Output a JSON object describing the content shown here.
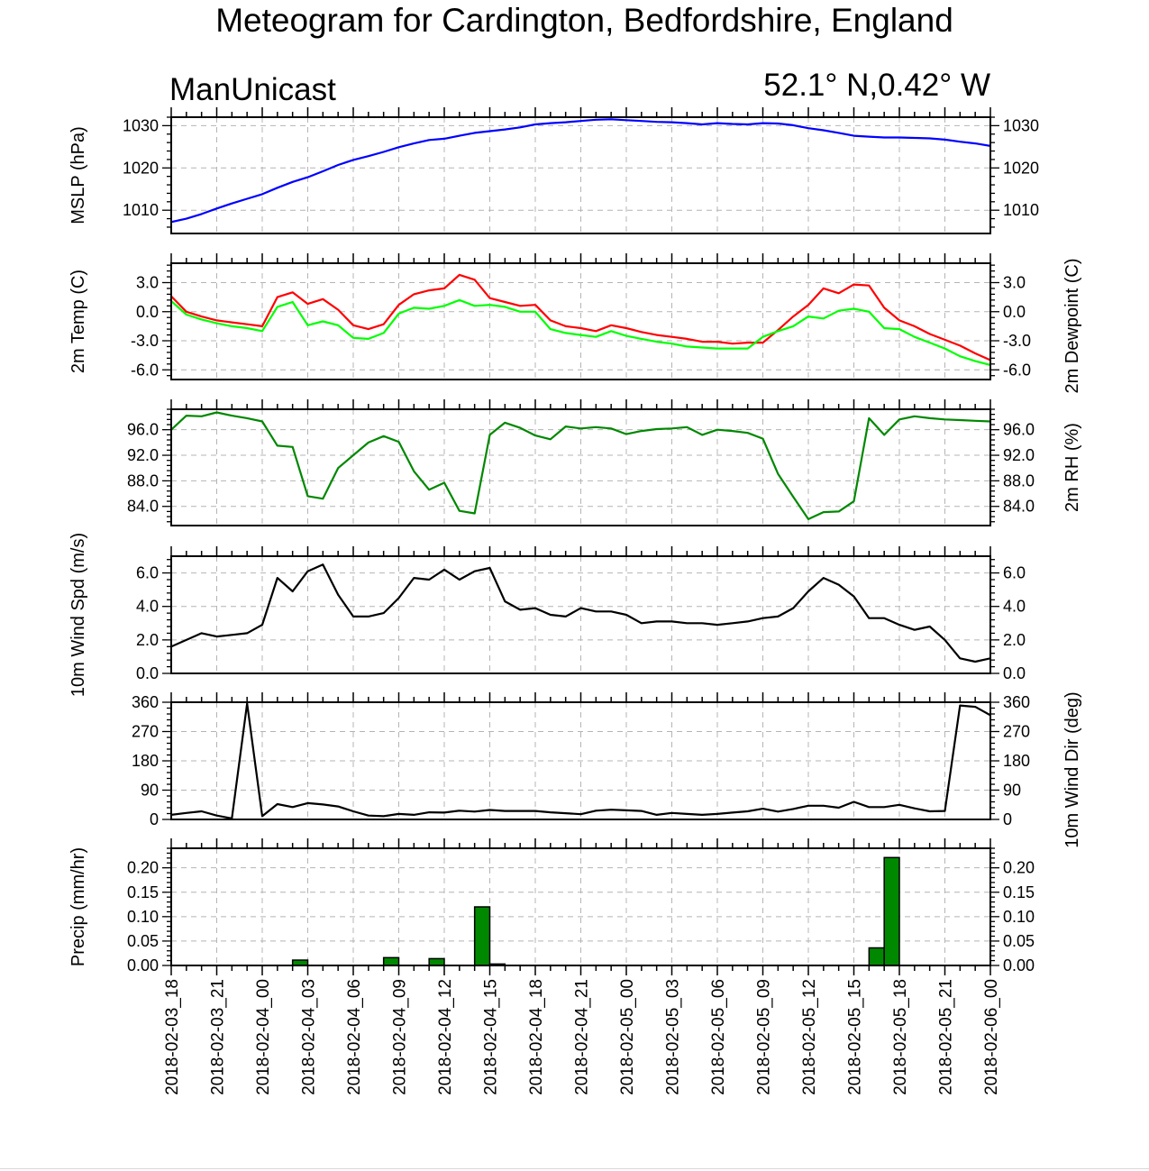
{
  "title": "Meteogram for Cardington, Bedfordshire, England",
  "left_string": "ManUnicast",
  "right_string": "52.1° N,0.42° W",
  "colors": {
    "mslp": "#0000ff",
    "temp": "#ff0000",
    "dewpoint": "#00ff00",
    "rh": "#008800",
    "wind": "#000000",
    "precip_fill": "#008800",
    "grid": "#b4b4b4"
  },
  "chart_data": {
    "type": "line",
    "x_time_labels": [
      "2018-02-03_18",
      "2018-02-03_21",
      "2018-02-04_00",
      "2018-02-04_03",
      "2018-02-04_06",
      "2018-02-04_09",
      "2018-02-04_12",
      "2018-02-04_15",
      "2018-02-04_18",
      "2018-02-04_21",
      "2018-02-05_00",
      "2018-02-05_03",
      "2018-02-05_06",
      "2018-02-05_09",
      "2018-02-05_12",
      "2018-02-05_15",
      "2018-02-05_18",
      "2018-02-05_21",
      "2018-02-06_00"
    ],
    "x_hours_range": [
      0,
      54
    ],
    "panels": [
      {
        "type": "line",
        "ylabel_left": "MSLP (hPa)",
        "ylabel_right": "",
        "ylim": [
          1004.5,
          1032
        ],
        "ticks": [
          1010,
          1020,
          1030
        ],
        "tick_labels": [
          "1010",
          "1020",
          "1030"
        ],
        "right_ticks": true,
        "series": [
          {
            "color_key": "mslp",
            "x": [
              0,
              1,
              2,
              3,
              4,
              5,
              6,
              7,
              8,
              9,
              10,
              11,
              12,
              13,
              14,
              15,
              16,
              17,
              18,
              19,
              20,
              21,
              22,
              23,
              24,
              25,
              26,
              27,
              28,
              29,
              30,
              31,
              32,
              33,
              34,
              35,
              36,
              37,
              38,
              39,
              40,
              41,
              42,
              43,
              44,
              45,
              46,
              47,
              48,
              49,
              50,
              51,
              52,
              53,
              54
            ],
            "y": [
              1007.2,
              1008.0,
              1009.1,
              1010.4,
              1011.6,
              1012.7,
              1013.8,
              1015.3,
              1016.7,
              1017.8,
              1019.2,
              1020.7,
              1021.9,
              1022.8,
              1023.8,
              1024.9,
              1025.8,
              1026.6,
              1026.9,
              1027.6,
              1028.3,
              1028.7,
              1029.1,
              1029.6,
              1030.3,
              1030.6,
              1030.8,
              1031.1,
              1031.4,
              1031.5,
              1031.3,
              1031.1,
              1030.9,
              1030.8,
              1030.6,
              1030.3,
              1030.6,
              1030.4,
              1030.3,
              1030.6,
              1030.5,
              1030.1,
              1029.4,
              1028.9,
              1028.3,
              1027.6,
              1027.4,
              1027.2,
              1027.2,
              1027.1,
              1027.0,
              1026.7,
              1026.2,
              1025.8,
              1025.2
            ]
          }
        ]
      },
      {
        "type": "line",
        "ylabel_left": "2m Temp (C)",
        "ylabel_right": "2m Dewpoint (C)",
        "ylim": [
          -7.0,
          5.0
        ],
        "ticks": [
          -6,
          -3,
          0,
          3
        ],
        "tick_labels": [
          "-6.0",
          "-3.0",
          "0.0",
          "3.0"
        ],
        "right_ticks": true,
        "series": [
          {
            "color_key": "temp",
            "x": [
              0,
              1,
              2,
              3,
              4,
              5,
              6,
              7,
              8,
              9,
              10,
              11,
              12,
              13,
              14,
              15,
              16,
              17,
              18,
              19,
              20,
              21,
              22,
              23,
              24,
              25,
              26,
              27,
              28,
              29,
              30,
              31,
              32,
              33,
              34,
              35,
              36,
              37,
              38,
              39,
              40,
              41,
              42,
              43,
              44,
              45,
              46,
              47,
              48,
              49,
              50,
              51,
              52,
              53,
              54
            ],
            "y": [
              1.6,
              0.0,
              -0.5,
              -0.9,
              -1.1,
              -1.3,
              -1.5,
              1.5,
              2.0,
              0.8,
              1.3,
              0.2,
              -1.4,
              -1.8,
              -1.3,
              0.7,
              1.8,
              2.2,
              2.4,
              3.8,
              3.3,
              1.4,
              1.0,
              0.6,
              0.7,
              -0.9,
              -1.5,
              -1.7,
              -2.0,
              -1.4,
              -1.7,
              -2.1,
              -2.4,
              -2.6,
              -2.8,
              -3.1,
              -3.1,
              -3.3,
              -3.2,
              -3.2,
              -1.9,
              -0.5,
              0.7,
              2.4,
              1.9,
              2.8,
              2.7,
              0.4,
              -0.9,
              -1.5,
              -2.3,
              -2.9,
              -3.5,
              -4.3,
              -5.0
            ]
          },
          {
            "color_key": "dewpoint",
            "x": [
              0,
              1,
              2,
              3,
              4,
              5,
              6,
              7,
              8,
              9,
              10,
              11,
              12,
              13,
              14,
              15,
              16,
              17,
              18,
              19,
              20,
              21,
              22,
              23,
              24,
              25,
              26,
              27,
              28,
              29,
              30,
              31,
              32,
              33,
              34,
              35,
              36,
              37,
              38,
              39,
              40,
              41,
              42,
              43,
              44,
              45,
              46,
              47,
              48,
              49,
              50,
              51,
              52,
              53,
              54
            ],
            "y": [
              1.1,
              -0.3,
              -0.8,
              -1.2,
              -1.5,
              -1.7,
              -2.0,
              0.5,
              1.0,
              -1.4,
              -1.0,
              -1.4,
              -2.7,
              -2.8,
              -2.2,
              -0.2,
              0.4,
              0.3,
              0.6,
              1.2,
              0.6,
              0.7,
              0.5,
              0.0,
              0.0,
              -1.8,
              -2.2,
              -2.4,
              -2.6,
              -2.0,
              -2.5,
              -2.8,
              -3.1,
              -3.3,
              -3.6,
              -3.7,
              -3.8,
              -3.8,
              -3.8,
              -2.6,
              -2.0,
              -1.5,
              -0.5,
              -0.7,
              0.1,
              0.3,
              0.0,
              -1.7,
              -1.8,
              -2.6,
              -3.2,
              -3.8,
              -4.6,
              -5.1,
              -5.5
            ]
          }
        ]
      },
      {
        "type": "line",
        "ylabel_left": "",
        "ylabel_right": "2m RH (%)",
        "ylim": [
          81.0,
          99.2
        ],
        "ticks": [
          84,
          88,
          92,
          96
        ],
        "tick_labels": [
          "84.0",
          "88.0",
          "92.0",
          "96.0"
        ],
        "right_ticks": true,
        "series": [
          {
            "color_key": "rh",
            "x": [
              0,
              1,
              2,
              3,
              4,
              5,
              6,
              7,
              8,
              9,
              10,
              11,
              12,
              13,
              14,
              15,
              16,
              17,
              18,
              19,
              20,
              21,
              22,
              23,
              24,
              25,
              26,
              27,
              28,
              29,
              30,
              31,
              32,
              33,
              34,
              35,
              36,
              37,
              38,
              39,
              40,
              41,
              42,
              43,
              44,
              45,
              46,
              47,
              48,
              49,
              50,
              51,
              52,
              53,
              54
            ],
            "y": [
              96.0,
              98.2,
              98.1,
              98.7,
              98.2,
              97.8,
              97.3,
              93.5,
              93.3,
              85.6,
              85.2,
              90.0,
              92.0,
              94.0,
              95.0,
              94.1,
              89.5,
              86.6,
              87.7,
              83.3,
              82.9,
              95.2,
              97.1,
              96.3,
              95.1,
              94.5,
              96.5,
              96.2,
              96.4,
              96.2,
              95.3,
              95.8,
              96.1,
              96.2,
              96.4,
              95.2,
              96.0,
              95.8,
              95.5,
              94.6,
              89.1,
              85.5,
              82.0,
              83.1,
              83.2,
              84.8,
              97.8,
              95.2,
              97.6,
              98.1,
              97.8,
              97.6,
              97.5,
              97.4,
              97.3
            ]
          }
        ]
      },
      {
        "type": "line",
        "ylabel_left": "10m Wind Spd (m/s)",
        "ylabel_right": "",
        "ylim": [
          0.0,
          7.0
        ],
        "ticks": [
          0,
          2,
          4,
          6
        ],
        "tick_labels": [
          "0.0",
          "2.0",
          "4.0",
          "6.0"
        ],
        "right_ticks": true,
        "series": [
          {
            "color_key": "wind",
            "x": [
              0,
              2,
              3,
              4,
              5,
              6,
              7,
              8,
              9,
              10,
              11,
              12,
              13,
              14,
              15,
              16,
              17,
              18,
              19,
              20,
              21,
              22,
              23,
              24,
              25,
              26,
              27,
              28,
              29,
              30,
              31,
              32,
              33,
              34,
              35,
              36,
              37,
              38,
              39,
              40,
              41,
              42,
              43,
              44,
              45,
              46,
              47,
              48,
              49,
              50,
              51,
              52,
              53,
              54
            ],
            "y": [
              1.6,
              2.4,
              2.2,
              2.3,
              2.4,
              2.9,
              5.7,
              4.9,
              6.1,
              6.5,
              4.7,
              3.4,
              3.4,
              3.6,
              4.5,
              5.7,
              5.6,
              6.2,
              5.6,
              6.1,
              6.3,
              4.3,
              3.8,
              3.9,
              3.5,
              3.4,
              3.9,
              3.7,
              3.7,
              3.5,
              3.0,
              3.1,
              3.1,
              3.0,
              3.0,
              2.9,
              3.0,
              3.1,
              3.3,
              3.4,
              3.9,
              4.9,
              5.7,
              5.3,
              4.6,
              3.3,
              3.3,
              2.9,
              2.6,
              2.8,
              2.0,
              0.9,
              0.7,
              0.9
            ]
          }
        ]
      },
      {
        "type": "line",
        "ylabel_left": "",
        "ylabel_right": "10m Wind Dir (deg)",
        "ylim": [
          0,
          360
        ],
        "ticks": [
          0,
          90,
          180,
          270,
          360
        ],
        "tick_labels": [
          "0",
          "90",
          "180",
          "270",
          "360"
        ],
        "right_ticks": true,
        "series": [
          {
            "color_key": "wind",
            "x": [
              0,
              1,
              2,
              3,
              4,
              5,
              6,
              7,
              8,
              9,
              10,
              11,
              12,
              13,
              14,
              15,
              16,
              17,
              18,
              19,
              20,
              21,
              22,
              23,
              24,
              25,
              26,
              27,
              28,
              29,
              30,
              31,
              32,
              33,
              34,
              35,
              36,
              37,
              38,
              39,
              40,
              41,
              42,
              43,
              44,
              45,
              46,
              47,
              48,
              49,
              50,
              51,
              52,
              53,
              54
            ],
            "y": [
              14,
              20,
              25,
              12,
              3,
              356,
              10,
              47,
              38,
              50,
              46,
              40,
              25,
              12,
              10,
              17,
              14,
              22,
              21,
              27,
              24,
              29,
              26,
              26,
              26,
              22,
              19,
              16,
              27,
              30,
              28,
              26,
              14,
              20,
              17,
              14,
              17,
              21,
              25,
              33,
              24,
              32,
              42,
              42,
              36,
              54,
              38,
              38,
              45,
              34,
              25,
              26,
              350,
              346,
              320
            ]
          }
        ]
      },
      {
        "type": "bar",
        "ylabel_left": "Precip (mm/hr)",
        "ylabel_right": "",
        "ylim": [
          0.0,
          0.24
        ],
        "ticks": [
          0,
          0.05,
          0.1,
          0.15,
          0.2
        ],
        "tick_labels": [
          "0.00",
          "0.05",
          "0.10",
          "0.15",
          "0.20"
        ],
        "right_ticks": true,
        "series": [
          {
            "color_key": "precip_fill",
            "x": [
              8,
              14,
              17,
              20,
              21,
              46,
              47
            ],
            "y": [
              0.011,
              0.016,
              0.014,
              0.12,
              0.003,
              0.036,
              0.221
            ]
          }
        ]
      }
    ],
    "grid": true
  }
}
